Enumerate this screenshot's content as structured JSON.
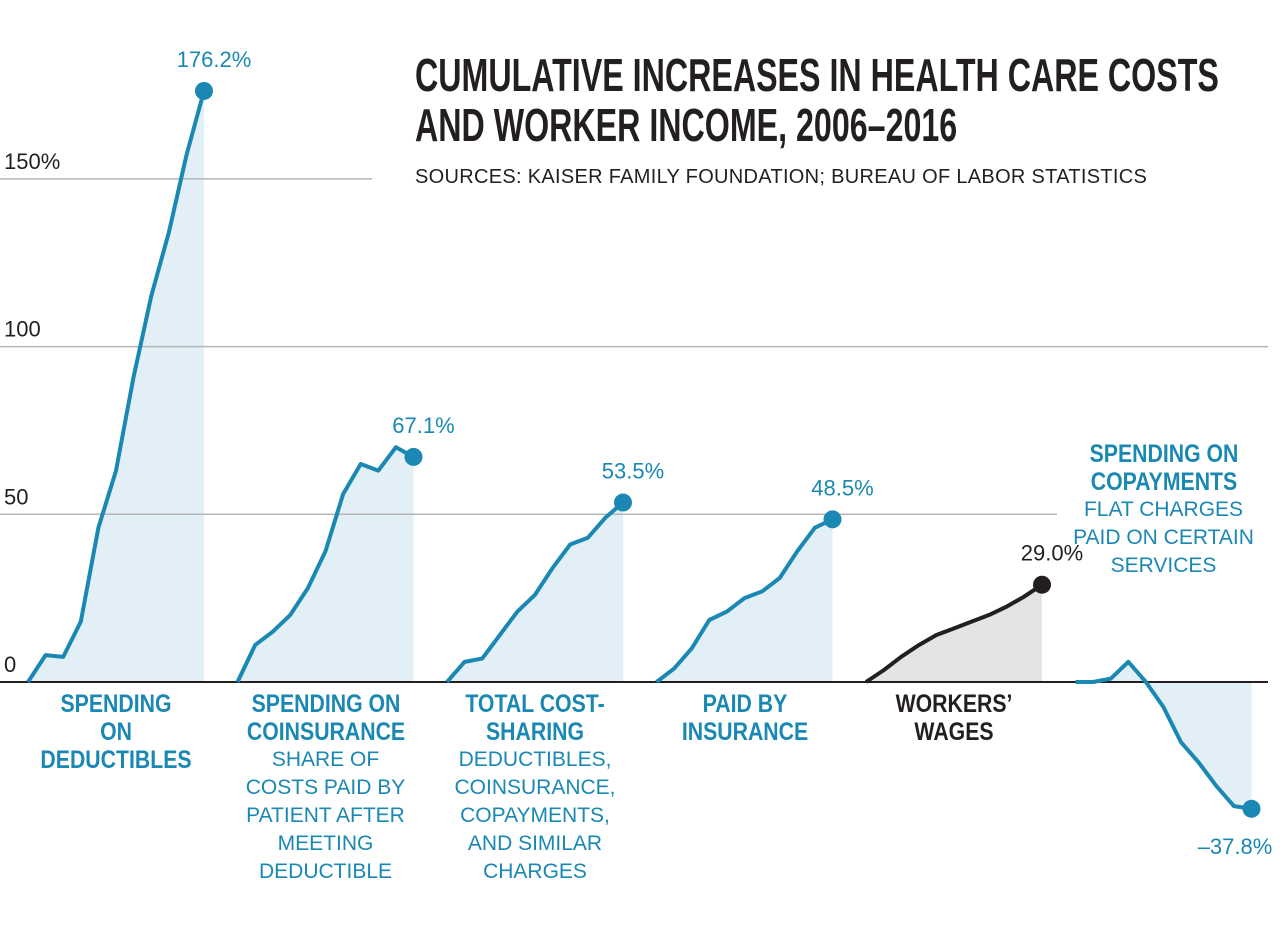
{
  "chart_data": {
    "type": "line",
    "title": "CUMULATIVE INCREASES IN HEALTH CARE COSTS\nAND WORKER INCOME, 2006–2016",
    "subtitle": "SOURCES: KAISER FAMILY FOUNDATION; BUREAU OF LABOR STATISTICS",
    "ylim": [
      -50,
      190
    ],
    "yticks": [
      0,
      50,
      100,
      {
        "value": 150,
        "label": "150%"
      }
    ],
    "grid": true,
    "series": [
      {
        "name": "SPENDING\nON\nDEDUCTIBLES",
        "color": "#1a88b2",
        "fill": "#e2eff6",
        "values": [
          0,
          8,
          7.5,
          18,
          46,
          63,
          91,
          115,
          134,
          157,
          176.2
        ],
        "value_labels": [
          null,
          null,
          null,
          null,
          null,
          null,
          null,
          null,
          null,
          null,
          "176.2%"
        ]
      },
      {
        "name": "SPENDING ON\nCOINSURANCE",
        "description": "SHARE OF\nCOSTS PAID BY\nPATIENT AFTER\nMEETING\nDEDUCTIBLE",
        "color": "#1a88b2",
        "fill": "#e2eff6",
        "values": [
          0,
          11,
          15,
          20,
          28,
          39,
          56,
          65,
          63,
          70,
          67.1
        ],
        "value_labels": [
          null,
          null,
          null,
          null,
          null,
          null,
          null,
          null,
          null,
          null,
          "67.1%"
        ]
      },
      {
        "name": "TOTAL COST-\nSHARING",
        "description": "DEDUCTIBLES,\nCOINSURANCE,\nCOPAYMENTS,\nAND SIMILAR\nCHARGES",
        "color": "#1a88b2",
        "fill": "#e2eff6",
        "values": [
          0,
          6,
          7,
          14,
          21,
          26,
          34,
          41,
          43,
          49,
          53.5
        ],
        "value_labels": [
          null,
          null,
          null,
          null,
          null,
          null,
          null,
          null,
          null,
          null,
          "53.5%"
        ]
      },
      {
        "name": "PAID BY\nINSURANCE",
        "color": "#1a88b2",
        "fill": "#e2eff6",
        "values": [
          0,
          4,
          10,
          18.5,
          21,
          25,
          27,
          31,
          39,
          46,
          48.5
        ],
        "value_labels": [
          null,
          null,
          null,
          null,
          null,
          null,
          null,
          null,
          null,
          null,
          "48.5%"
        ]
      },
      {
        "name": "WORKERS’\nWAGES",
        "color": "#231f20",
        "fill": "#e4e4e4",
        "values": [
          0,
          3.5,
          7.5,
          11,
          14,
          16,
          18,
          20,
          22.5,
          25.5,
          29
        ],
        "value_labels": [
          null,
          null,
          null,
          null,
          null,
          null,
          null,
          null,
          null,
          null,
          "29.0%"
        ]
      },
      {
        "name": "SPENDING ON\nCOPAYMENTS",
        "description": "FLAT CHARGES\nPAID ON CERTAIN\nSERVICES",
        "color": "#1a88b2",
        "fill": "#e2eff6",
        "values": [
          0,
          0,
          1,
          6,
          0,
          -7.5,
          -18,
          -24,
          -31,
          -37,
          -37.8
        ],
        "value_labels": [
          null,
          null,
          null,
          null,
          null,
          null,
          null,
          null,
          null,
          null,
          "–37.8%"
        ]
      }
    ]
  }
}
